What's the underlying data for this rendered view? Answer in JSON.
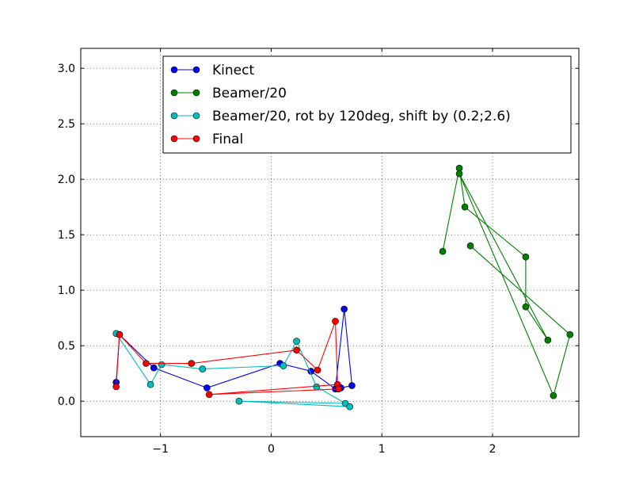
{
  "chart_data": {
    "type": "line",
    "title": "",
    "xlabel": "",
    "ylabel": "",
    "xlim": [
      -1.72,
      2.78
    ],
    "ylim": [
      -0.32,
      3.18
    ],
    "xticks": [
      -1,
      0,
      1,
      2
    ],
    "xtick_labels": [
      "−1",
      "0",
      "1",
      "2"
    ],
    "yticks": [
      0.0,
      0.5,
      1.0,
      1.5,
      2.0,
      2.5,
      3.0
    ],
    "ytick_labels": [
      "0.0",
      "0.5",
      "1.0",
      "1.5",
      "2.0",
      "2.5",
      "3.0"
    ],
    "grid": true,
    "legend_position": "top",
    "series": [
      {
        "name": "Kinect",
        "color": "#0000ff",
        "x": [
          -1.4,
          -1.37,
          -1.06,
          -0.58,
          0.08,
          0.36,
          0.58,
          0.66,
          0.73,
          0.63
        ],
        "y": [
          0.17,
          0.6,
          0.3,
          0.12,
          0.34,
          0.27,
          0.11,
          0.83,
          0.14,
          0.12
        ]
      },
      {
        "name": "Beamer/20",
        "color": "#008000",
        "x": [
          1.55,
          1.7,
          1.75,
          2.3,
          2.3,
          2.5,
          1.7,
          2.55,
          2.7,
          1.8
        ],
        "y": [
          1.35,
          2.1,
          1.75,
          1.3,
          0.85,
          0.55,
          2.05,
          0.05,
          0.6,
          1.4
        ]
      },
      {
        "name": "Beamer/20, rot by 120deg, shift by (0.2;2.6)",
        "color": "#00bfbf",
        "x": [
          -1.4,
          -1.09,
          -0.99,
          -0.62,
          0.11,
          0.23,
          0.41,
          0.67,
          -0.29,
          0.71
        ],
        "y": [
          0.61,
          0.15,
          0.33,
          0.29,
          0.32,
          0.54,
          0.13,
          -0.02,
          0.0,
          -0.05
        ]
      },
      {
        "name": "Final",
        "color": "#ff0000",
        "x": [
          -1.4,
          -1.37,
          -1.13,
          -0.72,
          0.23,
          0.42,
          0.58,
          0.6,
          -0.56,
          0.61
        ],
        "y": [
          0.13,
          0.6,
          0.34,
          0.34,
          0.46,
          0.28,
          0.72,
          0.15,
          0.06,
          0.11
        ]
      }
    ]
  }
}
